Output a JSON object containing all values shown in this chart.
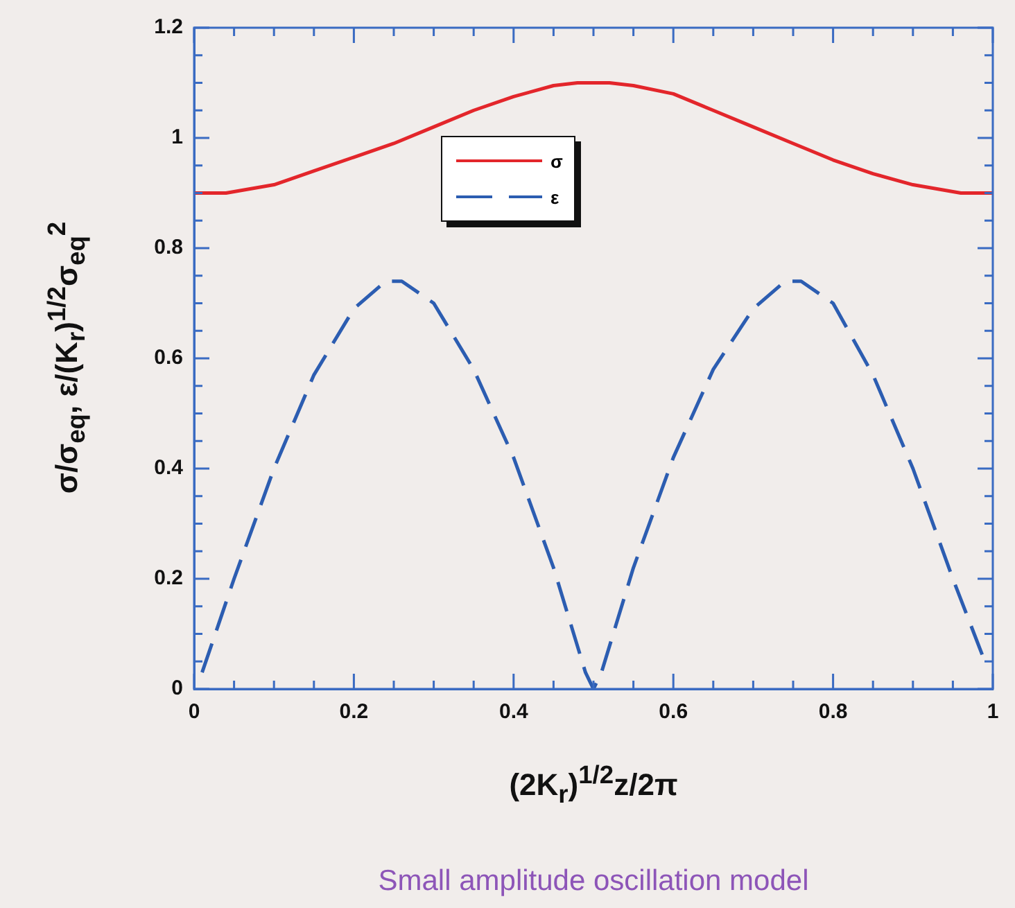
{
  "chart_data": {
    "type": "line",
    "xlabel": "(2K$_{r}$)$^{1/2}$z/2π",
    "ylabel": "σ/σ$_{eq}$, ε/(K$_{r}$)$^{1/2}$σ$_{eq}$$^{2}$",
    "annotations": [
      "Small amplitude oscillation model"
    ],
    "xlim": [
      0,
      1
    ],
    "ylim": [
      0,
      1.2
    ],
    "xticks": [
      0,
      {
        "value": 0.05,
        "label": null
      },
      {
        "value": 0.1,
        "label": null
      },
      {
        "value": 0.15,
        "label": null
      },
      0.2,
      {
        "value": 0.25,
        "label": null
      },
      {
        "value": 0.3,
        "label": null
      },
      {
        "value": 0.35,
        "label": null
      },
      0.4,
      {
        "value": 0.45,
        "label": null
      },
      {
        "value": 0.5,
        "label": null
      },
      {
        "value": 0.55,
        "label": null
      },
      0.6,
      {
        "value": 0.65,
        "label": null
      },
      {
        "value": 0.7,
        "label": null
      },
      {
        "value": 0.75,
        "label": null
      },
      0.8,
      {
        "value": 0.85,
        "label": null
      },
      {
        "value": 0.9,
        "label": null
      },
      {
        "value": 0.95,
        "label": null
      },
      1
    ],
    "yticks": [
      0,
      {
        "value": 0.05,
        "label": null
      },
      {
        "value": 0.1,
        "label": null
      },
      {
        "value": 0.15,
        "label": null
      },
      0.2,
      {
        "value": 0.25,
        "label": null
      },
      {
        "value": 0.3,
        "label": null
      },
      {
        "value": 0.35,
        "label": null
      },
      0.4,
      {
        "value": 0.45,
        "label": null
      },
      {
        "value": 0.5,
        "label": null
      },
      {
        "value": 0.55,
        "label": null
      },
      0.6,
      {
        "value": 0.65,
        "label": null
      },
      {
        "value": 0.7,
        "label": null
      },
      {
        "value": 0.75,
        "label": null
      },
      0.8,
      {
        "value": 0.85,
        "label": null
      },
      {
        "value": 0.9,
        "label": null
      },
      {
        "value": 0.95,
        "label": null
      },
      1,
      {
        "value": 1.05,
        "label": null
      },
      {
        "value": 1.1,
        "label": null
      },
      {
        "value": 1.15,
        "label": null
      },
      1.2
    ],
    "grid": false,
    "legend": "top",
    "marker": "none",
    "series": [
      {
        "name": "σ",
        "color": "#e3262b",
        "line_style": "solid",
        "x": [
          0,
          0.04,
          0.1,
          0.15,
          0.2,
          0.25,
          0.3,
          0.35,
          0.4,
          0.45,
          0.48,
          0.52,
          0.55,
          0.6,
          0.65,
          0.7,
          0.75,
          0.8,
          0.85,
          0.9,
          0.96,
          1
        ],
        "values": [
          0.9,
          0.9,
          0.915,
          0.94,
          0.965,
          0.99,
          1.02,
          1.05,
          1.075,
          1.095,
          1.1,
          1.1,
          1.095,
          1.08,
          1.05,
          1.02,
          0.99,
          0.96,
          0.935,
          0.915,
          0.9,
          0.9
        ]
      },
      {
        "name": "ε",
        "color": "#2c5db1",
        "line_style": "dashed",
        "x": [
          0.01,
          0.05,
          0.1,
          0.15,
          0.2,
          0.24,
          0.26,
          0.3,
          0.35,
          0.4,
          0.45,
          0.49,
          0.5,
          0.51,
          0.55,
          0.6,
          0.65,
          0.7,
          0.74,
          0.76,
          0.8,
          0.85,
          0.9,
          0.95,
          0.99
        ],
        "values": [
          0.03,
          0.2,
          0.4,
          0.57,
          0.69,
          0.74,
          0.74,
          0.7,
          0.58,
          0.42,
          0.22,
          0.03,
          0,
          0.03,
          0.22,
          0.42,
          0.58,
          0.69,
          0.74,
          0.74,
          0.7,
          0.57,
          0.4,
          0.2,
          0.05
        ]
      }
    ]
  }
}
